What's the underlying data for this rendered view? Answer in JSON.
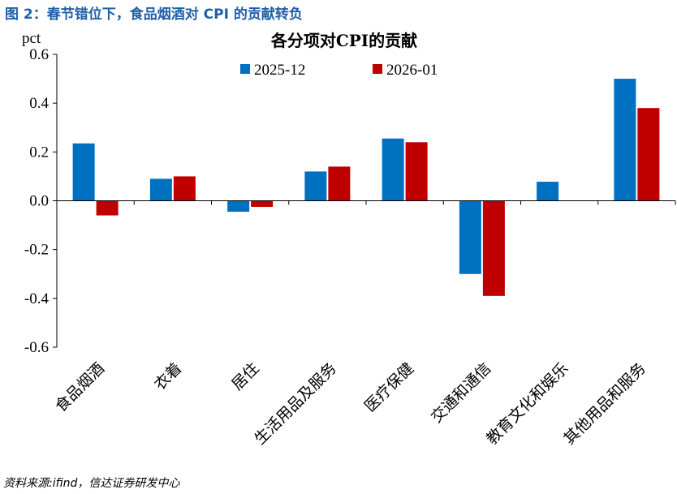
{
  "figure": {
    "title": "图 2：春节错位下，食品烟酒对 CPI 的贡献转负",
    "source": "资料来源:ifind，信达证券研发中心"
  },
  "colors": {
    "series1": "#0070c0",
    "series2": "#c00000"
  },
  "chart_data": {
    "type": "bar",
    "title": "各分项对CPI的贡献",
    "ylabel": "pct",
    "xlabel": "",
    "ylim": [
      -0.6,
      0.6
    ],
    "yticks": [
      "0.6",
      "0.4",
      "0.2",
      "0.0",
      "-0.2",
      "-0.4",
      "-0.6"
    ],
    "ytick_values": [
      0.6,
      0.4,
      0.2,
      0.0,
      -0.2,
      -0.4,
      -0.6
    ],
    "legend_position": "top-center",
    "categories": [
      "食品烟酒",
      "衣着",
      "居住",
      "生活用品及服务",
      "医疗保健",
      "交通和通信",
      "教育文化和娱乐",
      "其他用品和服务"
    ],
    "series": [
      {
        "name": "2025-12",
        "values": [
          0.235,
          0.09,
          -0.045,
          0.12,
          0.255,
          -0.3,
          0.078,
          0.5
        ]
      },
      {
        "name": "2026-01",
        "values": [
          -0.06,
          0.1,
          -0.025,
          0.14,
          0.24,
          -0.39,
          0.0,
          0.38
        ]
      }
    ]
  }
}
